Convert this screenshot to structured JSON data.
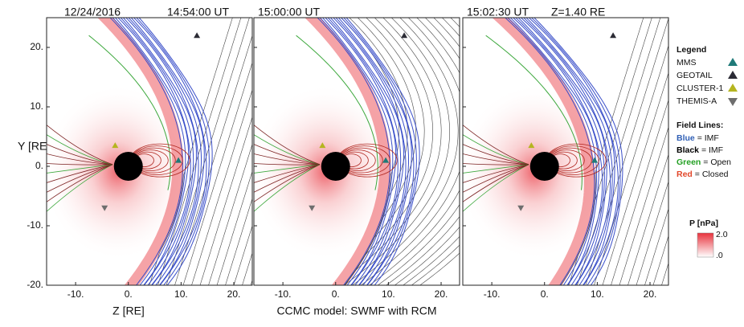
{
  "chart_data": {
    "type": "field_lines",
    "date": "12/24/2016",
    "xlabel": "Z [RE]",
    "ylabel": "Y [RE]",
    "note": "CCMC model:  SWMF with RCM",
    "xlim": [
      -15.5,
      23.5
    ],
    "ylim": [
      -20,
      25
    ],
    "xticks": [
      {
        "value": -10,
        "label": "-10."
      },
      {
        "value": 0,
        "label": "0."
      },
      {
        "value": 10,
        "label": "10."
      },
      {
        "value": 20,
        "label": "20."
      }
    ],
    "yticks": [
      {
        "value": 20,
        "label": "20."
      },
      {
        "value": 10,
        "label": "10."
      },
      {
        "value": 0,
        "label": "0."
      },
      {
        "value": -10,
        "label": "-10."
      },
      {
        "value": -20,
        "label": "-20."
      }
    ],
    "panels": [
      {
        "time": "14:54:00 UT"
      },
      {
        "time": "15:00:00 UT"
      },
      {
        "time": "15:02:30 UT",
        "position": "Z=1.40 RE"
      }
    ],
    "legend_title": "Legend",
    "satellites": [
      {
        "name": "MMS",
        "color": "#1f7a78",
        "x": 9.5,
        "y": 1,
        "dir": "up"
      },
      {
        "name": "GEOTAIL",
        "color": "#2b2b35",
        "x": 13,
        "y": 22,
        "dir": "up"
      },
      {
        "name": "CLUSTER-1",
        "color": "#b5b520",
        "x": -2.5,
        "y": 3.5,
        "dir": "up"
      },
      {
        "name": "THEMIS-A",
        "color": "#6e6e6e",
        "x": -4.5,
        "y": -7,
        "dir": "down"
      }
    ],
    "field_lines_title": "Field Lines:",
    "field_lines": [
      {
        "key": "Blue",
        "text": "= IMF",
        "color": "#2f5fb5"
      },
      {
        "key": "Black",
        "text": "= IMF",
        "color": "#000000"
      },
      {
        "key": "Green",
        "text": "= Open",
        "color": "#23a023"
      },
      {
        "key": "Red",
        "text": "= Closed",
        "color": "#e2472a"
      }
    ],
    "colorbar": {
      "label": "P [nPa]",
      "range": [
        0,
        2
      ],
      "max_label": "2.0",
      "min_label": ".0",
      "color": "#e8323c"
    }
  }
}
